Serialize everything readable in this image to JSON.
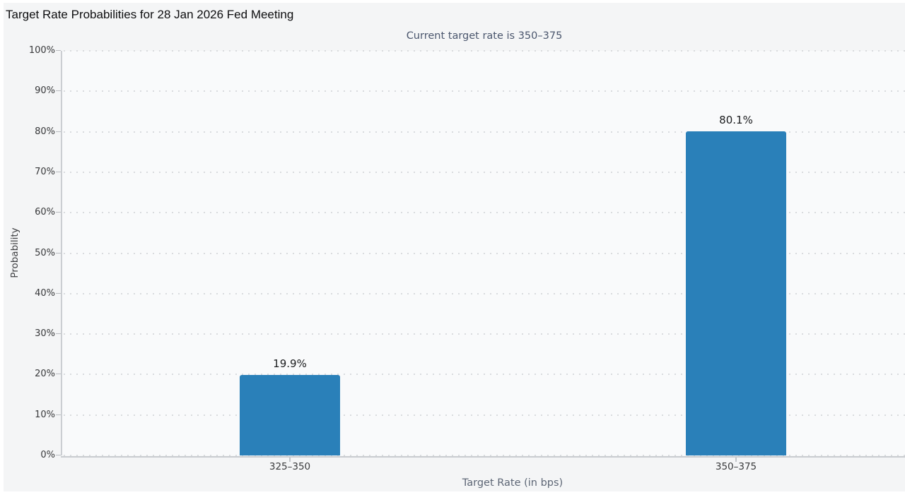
{
  "chart_data": {
    "type": "bar",
    "title": "Target Rate Probabilities for 28 Jan 2026 Fed Meeting",
    "subtitle": "Current target rate is 350–375",
    "categories": [
      "325–350",
      "350–375"
    ],
    "values": [
      19.9,
      80.1
    ],
    "value_labels": [
      "19.9%",
      "80.1%"
    ],
    "xlabel": "Target Rate (in bps)",
    "ylabel": "Probability",
    "ylim": [
      0,
      100
    ],
    "ytick_labels": [
      "0%",
      "10%",
      "20%",
      "30%",
      "40%",
      "50%",
      "60%",
      "70%",
      "80%",
      "90%",
      "100%"
    ],
    "grid": "horizontal-dotted",
    "legend_position": "none",
    "colors": {
      "bar": "#2a80b9",
      "subtitle_text": "#4a566d",
      "axis_line": "#c9ccd0",
      "panel_background": "#f4f5f6"
    }
  }
}
